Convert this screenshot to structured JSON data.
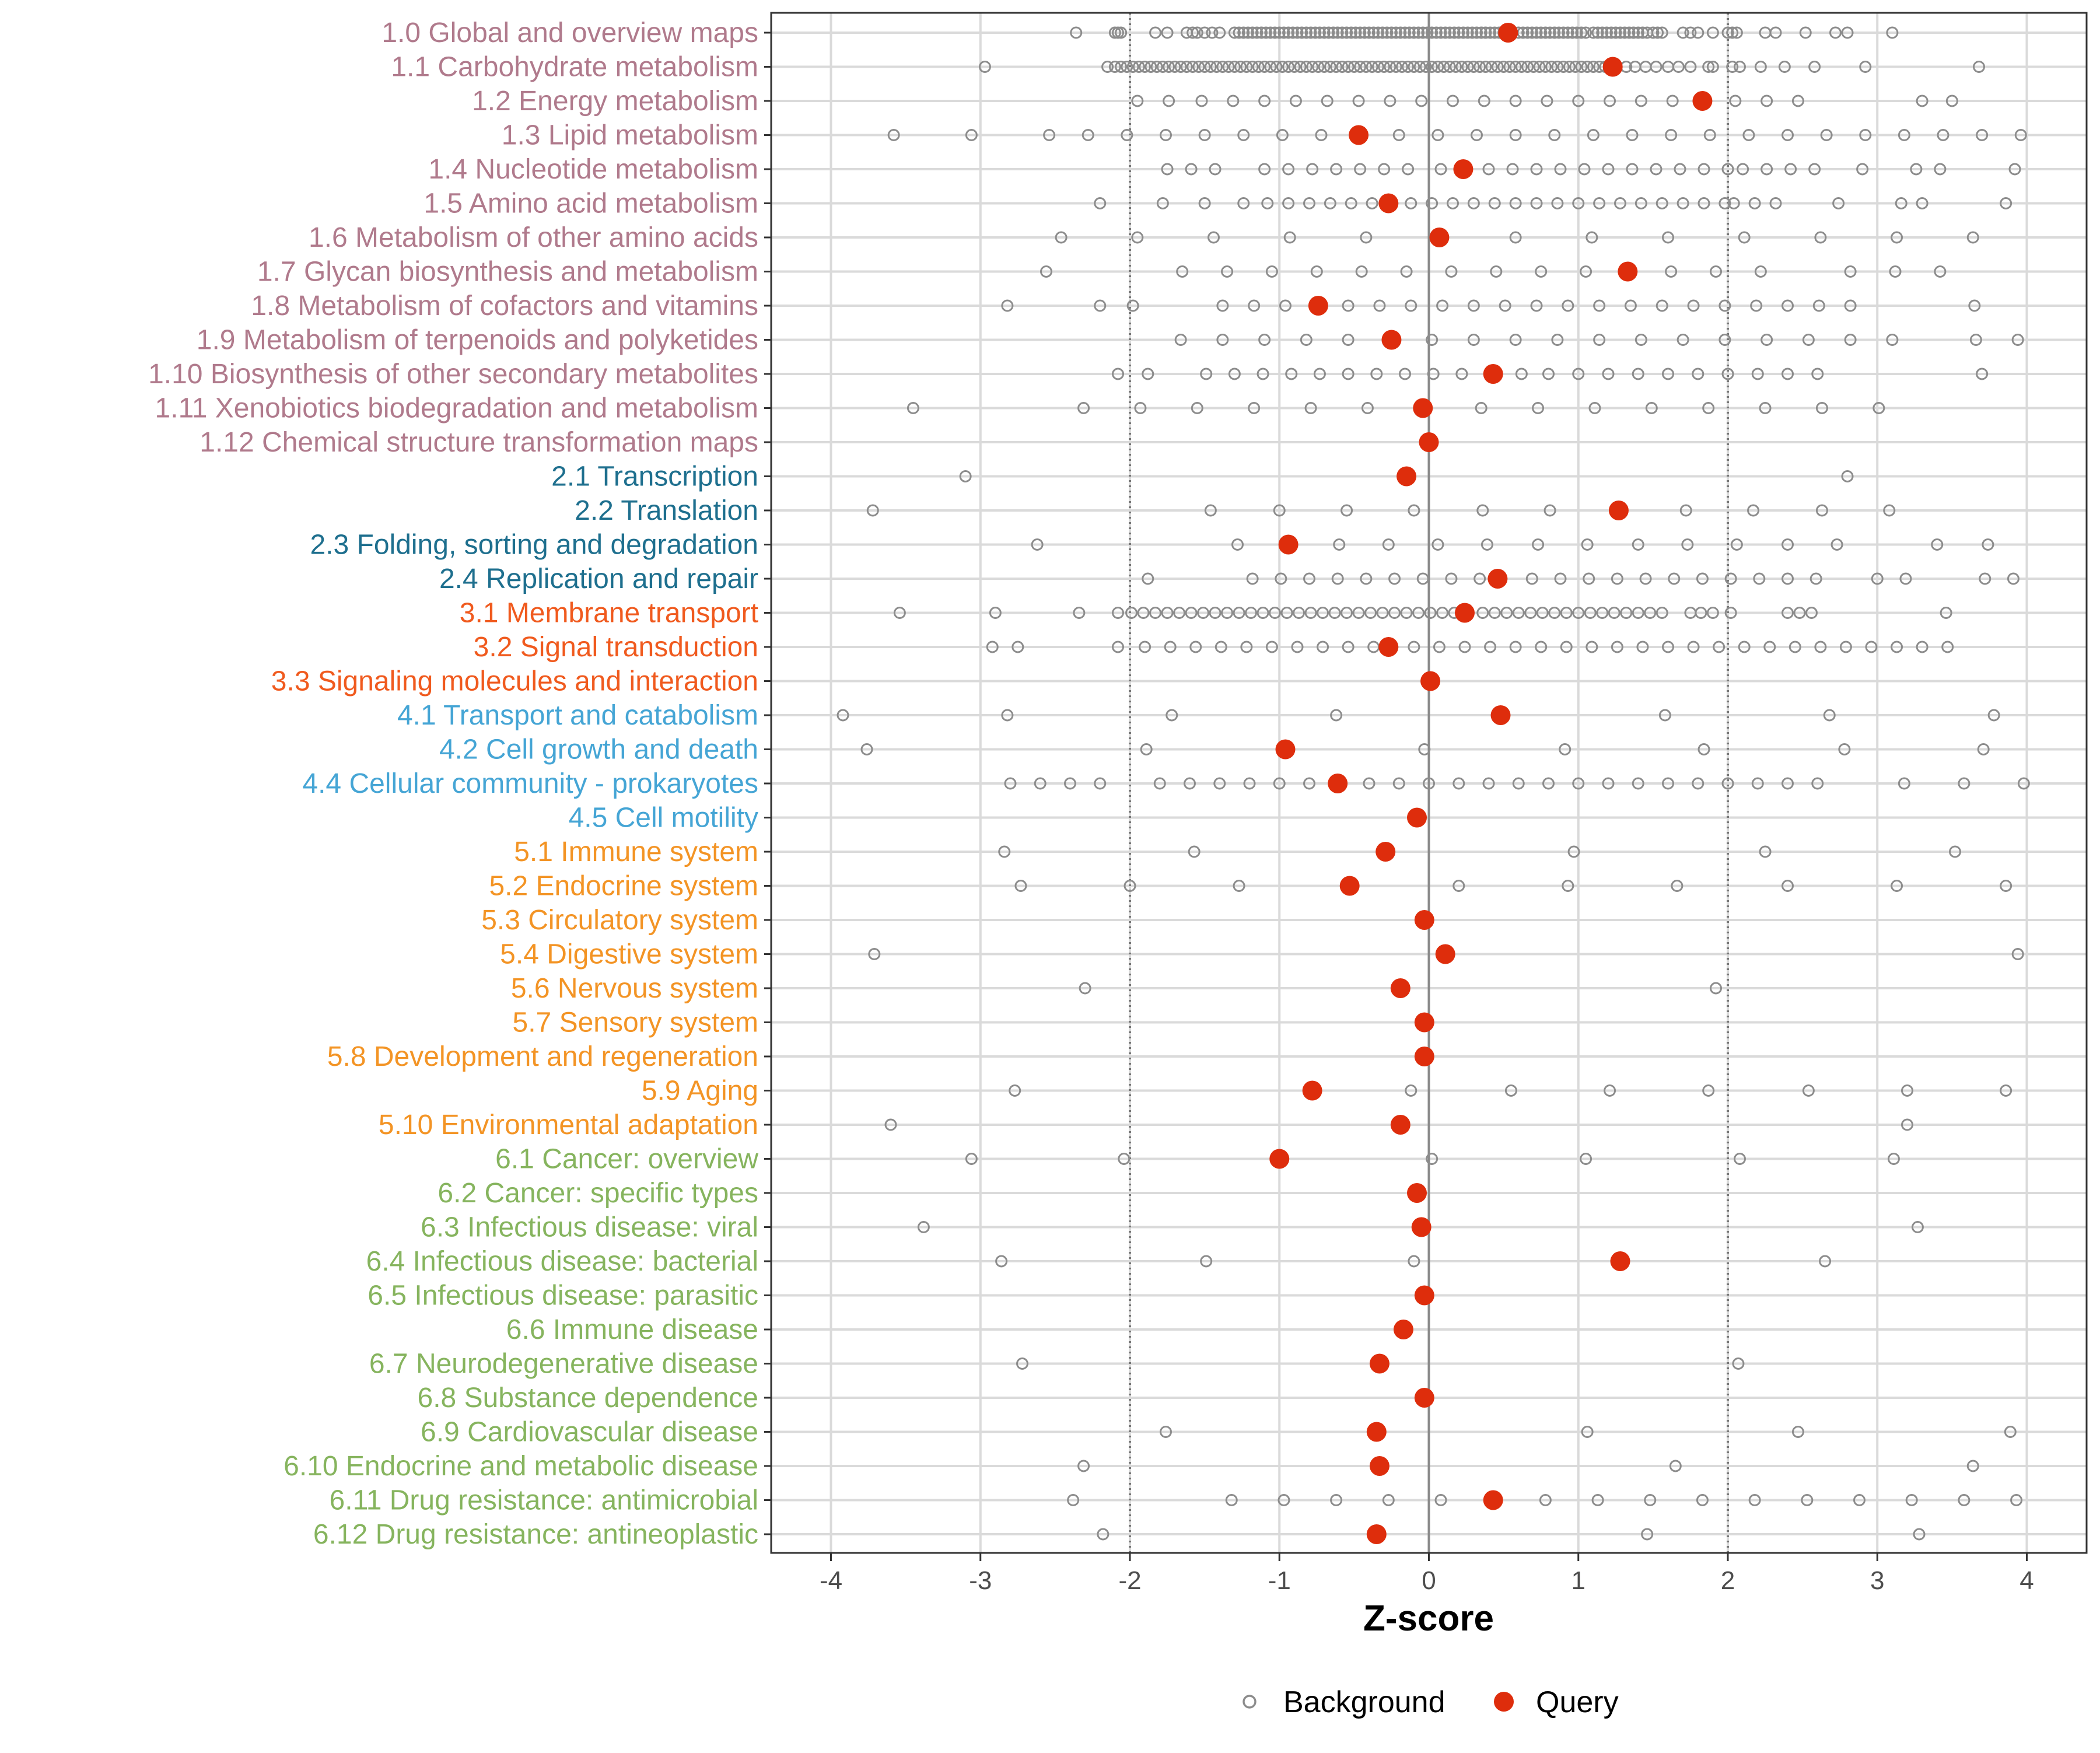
{
  "colors": {
    "metabolism": "#B07A8C",
    "genetic": "#1E6F8E",
    "environmental": "#F05A1E",
    "cellular": "#45A5D5",
    "organismal": "#F39425",
    "disease": "#86B45E",
    "background_point": "#8C8C8C",
    "query_point": "#DE2D0C",
    "grid": "#DADADA",
    "panel_border": "#333333"
  },
  "chart_data": {
    "type": "scatter",
    "title": "",
    "xlabel": "Z-score",
    "ylabel": "",
    "xlim": [
      -4.4,
      4.4
    ],
    "xticks": [
      -4,
      -3,
      -2,
      -1,
      0,
      1,
      2,
      3,
      4
    ],
    "xtick_labels": [
      "-4",
      "-3",
      "-2",
      "-1",
      "0",
      "1",
      "2",
      "3",
      "4"
    ],
    "reference_lines": {
      "dotted": [
        -2,
        2
      ],
      "solid": [
        0
      ]
    },
    "legend": {
      "position": "bottom",
      "entries": [
        {
          "key": "background",
          "label": "Background",
          "marker": "hollow-circle"
        },
        {
          "key": "query",
          "label": "Query",
          "marker": "filled-circle"
        }
      ]
    },
    "categories": [
      {
        "label": "1.0 Global and overview maps",
        "group": "metabolism",
        "query": 0.53,
        "background": [
          -2.36,
          -2.1,
          -2.08,
          -2.06,
          -1.83,
          -1.75,
          -1.62,
          -1.58,
          -1.55,
          -1.5,
          -1.45,
          -1.4,
          -1.3,
          -1.27,
          -1.24,
          -1.21,
          -1.18,
          -1.15,
          -1.12,
          -1.09,
          -1.06,
          -1.03,
          -1.0,
          -0.97,
          -0.94,
          -0.91,
          -0.88,
          -0.85,
          -0.82,
          -0.79,
          -0.76,
          -0.73,
          -0.7,
          -0.67,
          -0.64,
          -0.61,
          -0.58,
          -0.55,
          -0.52,
          -0.49,
          -0.46,
          -0.43,
          -0.4,
          -0.37,
          -0.34,
          -0.31,
          -0.28,
          -0.25,
          -0.22,
          -0.19,
          -0.16,
          -0.13,
          -0.1,
          -0.07,
          -0.04,
          -0.01,
          0.02,
          0.05,
          0.08,
          0.11,
          0.14,
          0.17,
          0.2,
          0.23,
          0.26,
          0.29,
          0.32,
          0.35,
          0.38,
          0.41,
          0.44,
          0.47,
          0.5,
          0.6,
          0.63,
          0.66,
          0.69,
          0.72,
          0.75,
          0.78,
          0.81,
          0.84,
          0.87,
          0.9,
          0.93,
          0.96,
          0.99,
          1.02,
          1.05,
          1.1,
          1.13,
          1.16,
          1.19,
          1.22,
          1.25,
          1.28,
          1.31,
          1.34,
          1.37,
          1.4,
          1.43,
          1.46,
          1.5,
          1.53,
          1.56,
          1.7,
          1.75,
          1.8,
          1.9,
          2.0,
          2.03,
          2.06,
          2.25,
          2.32,
          2.52,
          2.72,
          2.8,
          3.1
        ]
      },
      {
        "label": "1.1 Carbohydrate metabolism",
        "group": "metabolism",
        "query": 1.23,
        "background": [
          -2.97,
          -2.15,
          -2.1,
          -2.06,
          -2.02,
          -1.98,
          -1.94,
          -1.9,
          -1.86,
          -1.82,
          -1.78,
          -1.74,
          -1.7,
          -1.66,
          -1.62,
          -1.58,
          -1.54,
          -1.5,
          -1.46,
          -1.42,
          -1.38,
          -1.34,
          -1.3,
          -1.26,
          -1.22,
          -1.18,
          -1.14,
          -1.1,
          -1.06,
          -1.02,
          -0.98,
          -0.94,
          -0.9,
          -0.86,
          -0.82,
          -0.78,
          -0.74,
          -0.7,
          -0.66,
          -0.62,
          -0.58,
          -0.54,
          -0.5,
          -0.46,
          -0.42,
          -0.38,
          -0.34,
          -0.3,
          -0.26,
          -0.22,
          -0.18,
          -0.14,
          -0.1,
          -0.06,
          -0.02,
          0.02,
          0.06,
          0.1,
          0.14,
          0.18,
          0.22,
          0.26,
          0.3,
          0.34,
          0.38,
          0.42,
          0.46,
          0.5,
          0.54,
          0.58,
          0.62,
          0.66,
          0.7,
          0.74,
          0.78,
          0.82,
          0.86,
          0.9,
          0.94,
          0.98,
          1.02,
          1.06,
          1.1,
          1.14,
          1.18,
          1.32,
          1.38,
          1.45,
          1.52,
          1.6,
          1.67,
          1.75,
          1.87,
          1.9,
          2.03,
          2.08,
          2.22,
          2.38,
          2.58,
          2.92,
          3.68
        ]
      },
      {
        "label": "1.2 Energy metabolism",
        "group": "metabolism",
        "query": 1.83,
        "background": [
          -1.95,
          -1.74,
          -1.52,
          -1.31,
          -1.1,
          -0.89,
          -0.68,
          -0.47,
          -0.26,
          -0.05,
          0.16,
          0.37,
          0.58,
          0.79,
          1.0,
          1.21,
          1.42,
          1.63,
          2.05,
          2.26,
          2.47,
          3.3,
          3.5
        ]
      },
      {
        "label": "1.3 Lipid metabolism",
        "group": "metabolism",
        "query": -0.47,
        "background": [
          -3.58,
          -3.06,
          -2.54,
          -2.28,
          -2.02,
          -1.76,
          -1.5,
          -1.24,
          -0.98,
          -0.72,
          -0.2,
          0.06,
          0.32,
          0.58,
          0.84,
          1.1,
          1.36,
          1.62,
          1.88,
          2.14,
          2.4,
          2.66,
          2.92,
          3.18,
          3.44,
          3.7,
          3.96
        ]
      },
      {
        "label": "1.4 Nucleotide metabolism",
        "group": "metabolism",
        "query": 0.23,
        "background": [
          -1.75,
          -1.59,
          -1.43,
          -1.1,
          -0.94,
          -0.78,
          -0.62,
          -0.46,
          -0.3,
          -0.14,
          0.08,
          0.4,
          0.56,
          0.72,
          0.88,
          1.04,
          1.2,
          1.36,
          1.52,
          1.68,
          1.84,
          2.0,
          2.1,
          2.26,
          2.42,
          2.58,
          2.9,
          3.26,
          3.42,
          3.92
        ]
      },
      {
        "label": "1.5 Amino acid metabolism",
        "group": "metabolism",
        "query": -0.27,
        "background": [
          -2.2,
          -1.78,
          -1.5,
          -1.24,
          -1.08,
          -0.94,
          -0.8,
          -0.66,
          -0.52,
          -0.38,
          -0.12,
          0.02,
          0.16,
          0.3,
          0.44,
          0.58,
          0.72,
          0.86,
          1.0,
          1.14,
          1.28,
          1.42,
          1.56,
          1.7,
          1.84,
          1.98,
          2.04,
          2.18,
          2.32,
          2.74,
          3.16,
          3.3,
          3.86
        ]
      },
      {
        "label": "1.6 Metabolism of other amino acids",
        "group": "metabolism",
        "query": 0.07,
        "background": [
          -2.46,
          -1.95,
          -1.44,
          -0.93,
          -0.42,
          0.58,
          1.09,
          1.6,
          2.11,
          2.62,
          3.13,
          3.64
        ]
      },
      {
        "label": "1.7 Glycan biosynthesis and metabolism",
        "group": "metabolism",
        "query": 1.33,
        "background": [
          -2.56,
          -1.65,
          -1.35,
          -1.05,
          -0.75,
          -0.45,
          -0.15,
          0.15,
          0.45,
          0.75,
          1.05,
          1.62,
          1.92,
          2.22,
          2.82,
          3.12,
          3.42
        ]
      },
      {
        "label": "1.8 Metabolism of cofactors and vitamins",
        "group": "metabolism",
        "query": -0.74,
        "background": [
          -2.82,
          -2.2,
          -1.98,
          -1.38,
          -1.17,
          -0.96,
          -0.54,
          -0.33,
          -0.12,
          0.09,
          0.3,
          0.51,
          0.72,
          0.93,
          1.14,
          1.35,
          1.56,
          1.77,
          1.98,
          2.19,
          2.4,
          2.61,
          2.82,
          3.65
        ]
      },
      {
        "label": "1.9 Metabolism of terpenoids and polyketides",
        "group": "metabolism",
        "query": -0.25,
        "background": [
          -1.66,
          -1.38,
          -1.1,
          -0.82,
          -0.54,
          0.02,
          0.3,
          0.58,
          0.86,
          1.14,
          1.42,
          1.7,
          1.98,
          2.26,
          2.54,
          2.82,
          3.1,
          3.66,
          3.94
        ]
      },
      {
        "label": "1.10 Biosynthesis of other secondary metabolites",
        "group": "metabolism",
        "query": 0.43,
        "background": [
          -2.08,
          -1.88,
          -1.49,
          -1.3,
          -1.11,
          -0.92,
          -0.73,
          -0.54,
          -0.35,
          -0.16,
          0.03,
          0.22,
          0.62,
          0.8,
          1.0,
          1.2,
          1.4,
          1.6,
          1.8,
          2.0,
          2.2,
          2.4,
          2.6,
          3.7
        ]
      },
      {
        "label": "1.11 Xenobiotics biodegradation and metabolism",
        "group": "metabolism",
        "query": -0.04,
        "background": [
          -3.45,
          -2.31,
          -1.93,
          -1.55,
          -1.17,
          -0.79,
          -0.41,
          0.35,
          0.73,
          1.11,
          1.49,
          1.87,
          2.25,
          2.63,
          3.01
        ]
      },
      {
        "label": "1.12 Chemical structure transformation maps",
        "group": "metabolism",
        "query": 0.0,
        "background": []
      },
      {
        "label": "2.1 Transcription",
        "group": "genetic",
        "query": -0.15,
        "background": [
          -3.1,
          2.8
        ]
      },
      {
        "label": "2.2 Translation",
        "group": "genetic",
        "query": 1.27,
        "background": [
          -3.72,
          -1.46,
          -1.0,
          -0.55,
          -0.1,
          0.36,
          0.81,
          1.72,
          2.17,
          2.63,
          3.08
        ]
      },
      {
        "label": "2.3 Folding, sorting and degradation",
        "group": "genetic",
        "query": -0.94,
        "background": [
          -2.62,
          -1.28,
          -0.6,
          -0.27,
          0.06,
          0.39,
          0.73,
          1.06,
          1.4,
          1.73,
          2.06,
          2.4,
          2.73,
          3.4,
          3.74
        ]
      },
      {
        "label": "2.4 Replication and repair",
        "group": "genetic",
        "query": 0.46,
        "background": [
          -1.88,
          -1.18,
          -0.99,
          -0.8,
          -0.61,
          -0.42,
          -0.23,
          -0.04,
          0.15,
          0.34,
          0.69,
          0.88,
          1.07,
          1.26,
          1.45,
          1.64,
          1.83,
          2.02,
          2.21,
          2.4,
          2.59,
          3.0,
          3.19,
          3.72,
          3.91
        ]
      },
      {
        "label": "3.1 Membrane transport",
        "group": "environmental",
        "query": 0.24,
        "background": [
          -3.54,
          -2.9,
          -2.34,
          -2.08,
          -1.99,
          -1.91,
          -1.83,
          -1.75,
          -1.67,
          -1.59,
          -1.51,
          -1.43,
          -1.35,
          -1.27,
          -1.19,
          -1.11,
          -1.03,
          -0.95,
          -0.87,
          -0.79,
          -0.71,
          -0.63,
          -0.55,
          -0.47,
          -0.39,
          -0.31,
          -0.23,
          -0.15,
          -0.07,
          0.01,
          0.09,
          0.17,
          0.36,
          0.44,
          0.52,
          0.6,
          0.68,
          0.76,
          0.84,
          0.92,
          1.0,
          1.08,
          1.16,
          1.24,
          1.32,
          1.4,
          1.48,
          1.56,
          1.75,
          1.82,
          1.9,
          2.02,
          2.4,
          2.48,
          2.56,
          3.46
        ]
      },
      {
        "label": "3.2 Signal transduction",
        "group": "environmental",
        "query": -0.27,
        "background": [
          -2.92,
          -2.75,
          -2.08,
          -1.9,
          -1.73,
          -1.56,
          -1.39,
          -1.22,
          -1.05,
          -0.88,
          -0.71,
          -0.54,
          -0.37,
          -0.1,
          0.07,
          0.24,
          0.41,
          0.58,
          0.75,
          0.92,
          1.09,
          1.26,
          1.43,
          1.6,
          1.77,
          1.94,
          2.11,
          2.28,
          2.45,
          2.62,
          2.79,
          2.96,
          3.13,
          3.3,
          3.47
        ]
      },
      {
        "label": "3.3 Signaling molecules and interaction",
        "group": "environmental",
        "query": 0.01,
        "background": []
      },
      {
        "label": "4.1 Transport and catabolism",
        "group": "cellular",
        "query": 0.48,
        "background": [
          -3.92,
          -2.82,
          -1.72,
          -0.62,
          1.58,
          2.68,
          3.78
        ]
      },
      {
        "label": "4.2 Cell growth and death",
        "group": "cellular",
        "query": -0.96,
        "background": [
          -3.76,
          -1.89,
          -0.03,
          0.91,
          1.84,
          2.78,
          3.71
        ]
      },
      {
        "label": "4.4 Cellular community - prokaryotes",
        "group": "cellular",
        "query": -0.61,
        "background": [
          -2.8,
          -2.6,
          -2.4,
          -2.2,
          -1.8,
          -1.6,
          -1.4,
          -1.2,
          -1.0,
          -0.8,
          -0.4,
          -0.2,
          0.0,
          0.2,
          0.4,
          0.6,
          0.8,
          1.0,
          1.2,
          1.4,
          1.6,
          1.8,
          2.0,
          2.2,
          2.4,
          2.6,
          3.18,
          3.58,
          3.98
        ]
      },
      {
        "label": "4.5 Cell motility",
        "group": "cellular",
        "query": -0.08,
        "background": []
      },
      {
        "label": "5.1 Immune system",
        "group": "organismal",
        "query": -0.29,
        "background": [
          -2.84,
          -1.57,
          0.97,
          2.25,
          3.52
        ]
      },
      {
        "label": "5.2 Endocrine system",
        "group": "organismal",
        "query": -0.53,
        "background": [
          -2.73,
          -2.0,
          -1.27,
          0.2,
          0.93,
          1.66,
          2.4,
          3.13,
          3.86
        ]
      },
      {
        "label": "5.3 Circulatory system",
        "group": "organismal",
        "query": -0.03,
        "background": []
      },
      {
        "label": "5.4 Digestive system",
        "group": "organismal",
        "query": 0.11,
        "background": [
          -3.71,
          3.94
        ]
      },
      {
        "label": "5.6 Nervous system",
        "group": "organismal",
        "query": -0.19,
        "background": [
          -2.3,
          1.92
        ]
      },
      {
        "label": "5.7 Sensory system",
        "group": "organismal",
        "query": -0.03,
        "background": []
      },
      {
        "label": "5.8 Development and regeneration",
        "group": "organismal",
        "query": -0.03,
        "background": []
      },
      {
        "label": "5.9 Aging",
        "group": "organismal",
        "query": -0.78,
        "background": [
          -2.77,
          -0.12,
          0.55,
          1.21,
          1.87,
          2.54,
          3.2,
          3.86
        ]
      },
      {
        "label": "5.10 Environmental adaptation",
        "group": "organismal",
        "query": -0.19,
        "background": [
          -3.6,
          3.2
        ]
      },
      {
        "label": "6.1 Cancer: overview",
        "group": "disease",
        "query": -1.0,
        "background": [
          -3.06,
          -2.04,
          0.02,
          1.05,
          2.08,
          3.11
        ]
      },
      {
        "label": "6.2 Cancer: specific types",
        "group": "disease",
        "query": -0.08,
        "background": []
      },
      {
        "label": "6.3 Infectious disease: viral",
        "group": "disease",
        "query": -0.05,
        "background": [
          -3.38,
          3.27
        ]
      },
      {
        "label": "6.4 Infectious disease: bacterial",
        "group": "disease",
        "query": 1.28,
        "background": [
          -2.86,
          -1.49,
          -0.1,
          2.65
        ]
      },
      {
        "label": "6.5 Infectious disease: parasitic",
        "group": "disease",
        "query": -0.03,
        "background": []
      },
      {
        "label": "6.6 Immune disease",
        "group": "disease",
        "query": -0.17,
        "background": []
      },
      {
        "label": "6.7 Neurodegenerative disease",
        "group": "disease",
        "query": -0.33,
        "background": [
          -2.72,
          2.07
        ]
      },
      {
        "label": "6.8 Substance dependence",
        "group": "disease",
        "query": -0.03,
        "background": []
      },
      {
        "label": "6.9 Cardiovascular disease",
        "group": "disease",
        "query": -0.35,
        "background": [
          -1.76,
          1.06,
          2.47,
          3.89
        ]
      },
      {
        "label": "6.10 Endocrine and metabolic disease",
        "group": "disease",
        "query": -0.33,
        "background": [
          -2.31,
          1.65,
          3.64
        ]
      },
      {
        "label": "6.11 Drug resistance: antimicrobial",
        "group": "disease",
        "query": 0.43,
        "background": [
          -2.38,
          -1.32,
          -0.97,
          -0.62,
          -0.27,
          0.08,
          0.78,
          1.13,
          1.48,
          1.83,
          2.18,
          2.53,
          2.88,
          3.23,
          3.58,
          3.93
        ]
      },
      {
        "label": "6.12 Drug resistance: antineoplastic",
        "group": "disease",
        "query": -0.35,
        "background": [
          -2.18,
          1.46,
          3.28
        ]
      }
    ]
  }
}
